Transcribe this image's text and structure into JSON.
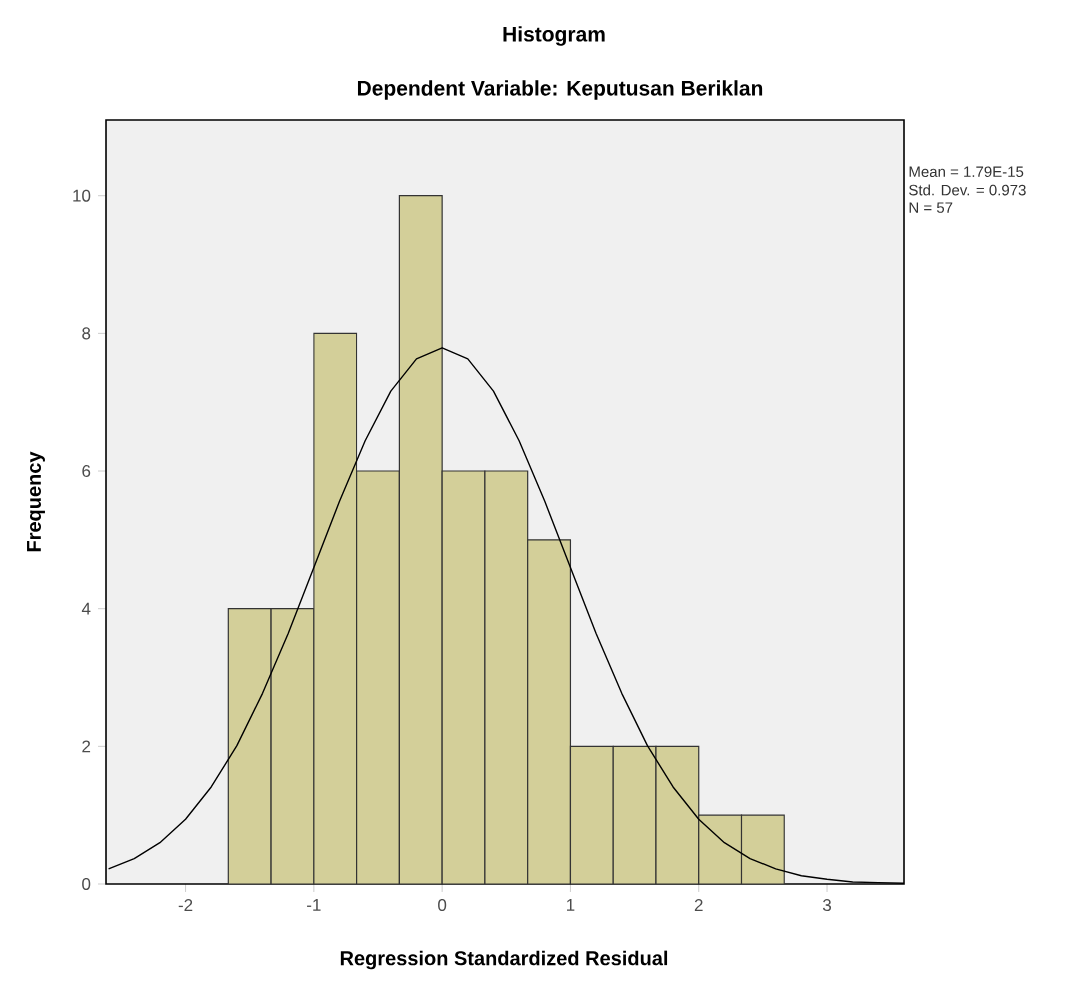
{
  "chart_data": {
    "type": "histogram",
    "title": "Histogram",
    "subtitle": "Dependent Variable: Keputusan Beriklan",
    "xlabel": "Regression Standardized Residual",
    "ylabel": "Frequency",
    "annotations": [
      "Mean = 1.79E-15",
      "Std. Dev. = 0.973",
      "N = 57"
    ],
    "bins": [
      -1.6667,
      -1.3333,
      -1.0,
      -0.6667,
      -0.3333,
      0.0,
      0.3333,
      0.6667,
      1.0,
      1.3333,
      1.6667,
      2.0,
      2.3333,
      2.6667
    ],
    "series": [
      {
        "color": "#d3cf99",
        "values": [
          4,
          4,
          8,
          6,
          10,
          6,
          6,
          5,
          2,
          2,
          2,
          1,
          1
        ]
      },
      {
        "type": "line",
        "color": "#000000",
        "x": [
          -2.6,
          -2.4,
          -2.2,
          -2.0,
          -1.8,
          -1.6,
          -1.4,
          -1.2,
          -1.0,
          -0.8,
          -0.6,
          -0.4,
          -0.2,
          0.0,
          0.2,
          0.4,
          0.6,
          0.8,
          1.0,
          1.2,
          1.4,
          1.6,
          1.8,
          2.0,
          2.2,
          2.4,
          2.6,
          2.8,
          3.0,
          3.2,
          3.4,
          3.6
        ],
        "values": [
          0.22,
          0.37,
          0.6,
          0.94,
          1.41,
          2.01,
          2.77,
          3.64,
          4.6,
          5.56,
          6.44,
          7.16,
          7.63,
          7.79,
          7.63,
          7.16,
          6.44,
          5.56,
          4.6,
          3.64,
          2.77,
          2.01,
          1.41,
          0.94,
          0.6,
          0.37,
          0.22,
          0.12,
          0.07,
          0.03,
          0.02,
          0.01
        ]
      }
    ],
    "xlim": [
      -2.62,
      3.6
    ],
    "ylim": [
      0,
      11.1
    ],
    "xticks": [
      -2,
      -1,
      0,
      1,
      2,
      3
    ],
    "yticks": [
      0,
      2,
      4,
      6,
      8,
      10
    ],
    "grid": false
  }
}
